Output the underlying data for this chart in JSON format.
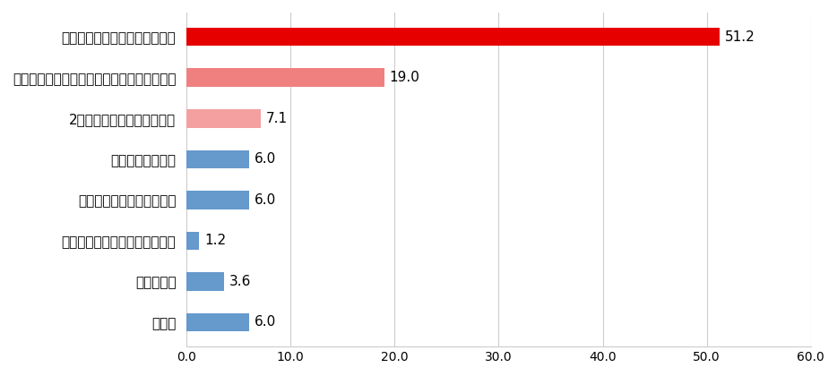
{
  "categories": [
    "スマホ端末の新製品は高いから",
    "高機能は必要なく、最低限の機能で問題ない",
    "2台目のスマホが欲しいから",
    "軽量のものがいい",
    "サイズが小さいものがいい",
    "ボタンのある昔のスマホがいい",
    "わからない",
    "その他"
  ],
  "values": [
    51.2,
    19.0,
    7.1,
    6.0,
    6.0,
    1.2,
    3.6,
    6.0
  ],
  "bar_colors": [
    "#e60000",
    "#f08080",
    "#f4a0a0",
    "#6699cc",
    "#6699cc",
    "#6699cc",
    "#6699cc",
    "#6699cc"
  ],
  "xlim": [
    0,
    60
  ],
  "xticks": [
    0.0,
    10.0,
    20.0,
    30.0,
    40.0,
    50.0,
    60.0
  ],
  "background_color": "#ffffff",
  "bar_height": 0.45,
  "label_fontsize": 11,
  "value_fontsize": 11,
  "tick_fontsize": 10,
  "grid_color": "#cccccc"
}
